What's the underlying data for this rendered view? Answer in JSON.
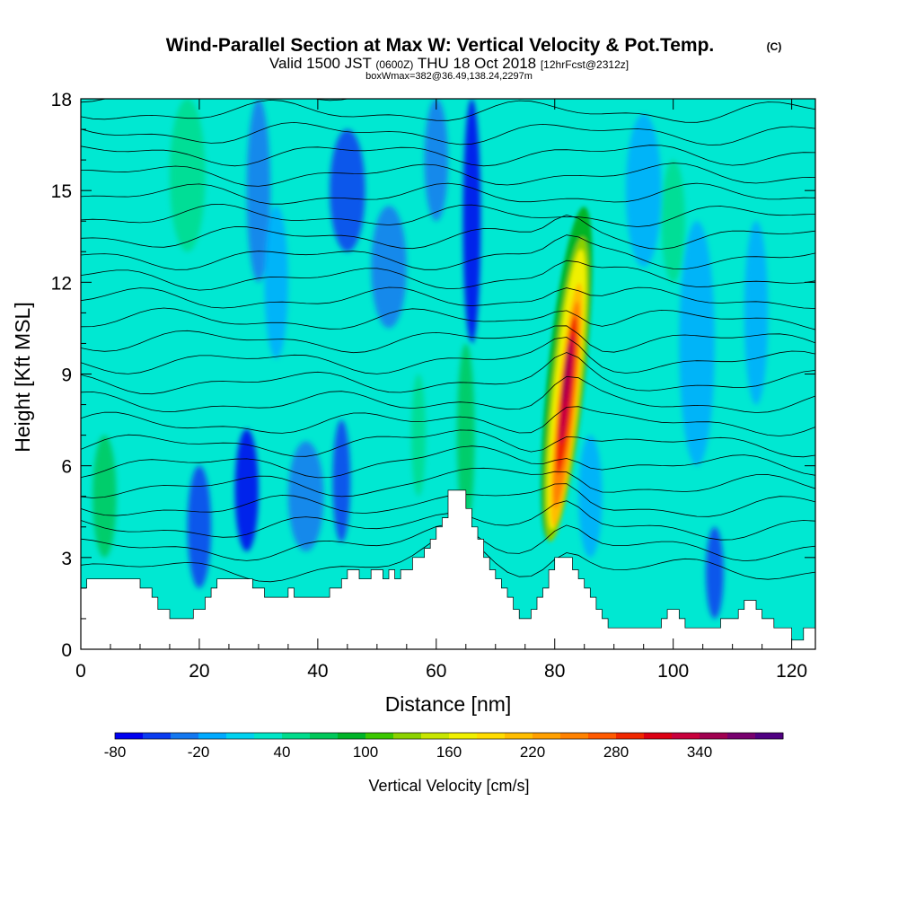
{
  "chart_data": {
    "type": "heatmap",
    "title": "Wind-Parallel Section at Max W: Vertical Velocity & Pot.Temp.",
    "title_tag": "(C)",
    "subtitle": {
      "valid": "Valid 1500 JST",
      "zulu": "(0600Z)",
      "date": "THU 18 Oct 2018",
      "forecast": "[12hrFcst@2312z]"
    },
    "annotation": "boxWmax=382@36.49,138.24,2297m",
    "xlabel": "Distance [nm]",
    "ylabel": "Height [Kft MSL]",
    "xlim": [
      0,
      124
    ],
    "ylim": [
      0,
      18
    ],
    "x_ticks": [
      0,
      20,
      40,
      60,
      80,
      100,
      120
    ],
    "y_ticks": [
      0,
      3,
      6,
      9,
      12,
      15,
      18
    ],
    "colorbar": {
      "label": "Vertical Velocity [cm/s]",
      "tick_labels": [
        -80,
        -20,
        40,
        100,
        160,
        220,
        280,
        340
      ],
      "levels": [
        -80,
        -60,
        -40,
        -20,
        0,
        20,
        40,
        60,
        80,
        100,
        120,
        140,
        160,
        180,
        200,
        220,
        240,
        260,
        280,
        300,
        320,
        340,
        360,
        380
      ],
      "colors": [
        "#0000f0",
        "#0a3cf0",
        "#1478f0",
        "#00aaff",
        "#00d2f0",
        "#00e6c8",
        "#00dc8c",
        "#00c85a",
        "#00b428",
        "#3cc800",
        "#8cd200",
        "#c8e600",
        "#f0f000",
        "#ffdc00",
        "#ffbe00",
        "#ffa000",
        "#ff8200",
        "#ff5a00",
        "#f02800",
        "#dc0014",
        "#c8003c",
        "#a00050",
        "#78006e",
        "#500082"
      ]
    },
    "terrain": [
      [
        0,
        2.0
      ],
      [
        1,
        2.0
      ],
      [
        1,
        2.3
      ],
      [
        10,
        2.3
      ],
      [
        10,
        2.0
      ],
      [
        12,
        2.0
      ],
      [
        12,
        1.7
      ],
      [
        13,
        1.7
      ],
      [
        13,
        1.3
      ],
      [
        15,
        1.3
      ],
      [
        15,
        1.0
      ],
      [
        19,
        1.0
      ],
      [
        19,
        1.3
      ],
      [
        21,
        1.3
      ],
      [
        21,
        1.7
      ],
      [
        22,
        1.7
      ],
      [
        22,
        2.0
      ],
      [
        23,
        2.0
      ],
      [
        23,
        2.3
      ],
      [
        29,
        2.3
      ],
      [
        29,
        2.0
      ],
      [
        31,
        2.0
      ],
      [
        31,
        1.7
      ],
      [
        35,
        1.7
      ],
      [
        35,
        2.0
      ],
      [
        36,
        2.0
      ],
      [
        36,
        1.7
      ],
      [
        42,
        1.7
      ],
      [
        42,
        2.0
      ],
      [
        44,
        2.0
      ],
      [
        44,
        2.3
      ],
      [
        45,
        2.3
      ],
      [
        45,
        2.6
      ],
      [
        47,
        2.6
      ],
      [
        47,
        2.3
      ],
      [
        49,
        2.3
      ],
      [
        49,
        2.6
      ],
      [
        51,
        2.6
      ],
      [
        51,
        2.3
      ],
      [
        52,
        2.3
      ],
      [
        52,
        2.6
      ],
      [
        53,
        2.6
      ],
      [
        53,
        2.3
      ],
      [
        54,
        2.3
      ],
      [
        54,
        2.6
      ],
      [
        56,
        2.6
      ],
      [
        56,
        3.0
      ],
      [
        58,
        3.0
      ],
      [
        58,
        3.3
      ],
      [
        59,
        3.3
      ],
      [
        59,
        3.6
      ],
      [
        60,
        3.6
      ],
      [
        60,
        4.0
      ],
      [
        61,
        4.0
      ],
      [
        61,
        4.3
      ],
      [
        62,
        4.3
      ],
      [
        62,
        5.2
      ],
      [
        65,
        5.2
      ],
      [
        65,
        4.6
      ],
      [
        66,
        4.6
      ],
      [
        66,
        4.0
      ],
      [
        67,
        4.0
      ],
      [
        67,
        3.6
      ],
      [
        68,
        3.6
      ],
      [
        68,
        3.0
      ],
      [
        69,
        3.0
      ],
      [
        69,
        2.6
      ],
      [
        70,
        2.6
      ],
      [
        70,
        2.3
      ],
      [
        71,
        2.3
      ],
      [
        71,
        2.0
      ],
      [
        72,
        2.0
      ],
      [
        72,
        1.7
      ],
      [
        73,
        1.7
      ],
      [
        73,
        1.3
      ],
      [
        74,
        1.3
      ],
      [
        74,
        1.0
      ],
      [
        76,
        1.0
      ],
      [
        76,
        1.3
      ],
      [
        77,
        1.3
      ],
      [
        77,
        1.7
      ],
      [
        78,
        1.7
      ],
      [
        78,
        2.0
      ],
      [
        79,
        2.0
      ],
      [
        79,
        2.6
      ],
      [
        80,
        2.6
      ],
      [
        80,
        3.0
      ],
      [
        83,
        3.0
      ],
      [
        83,
        2.6
      ],
      [
        84,
        2.6
      ],
      [
        84,
        2.3
      ],
      [
        85,
        2.3
      ],
      [
        85,
        2.0
      ],
      [
        86,
        2.0
      ],
      [
        86,
        1.7
      ],
      [
        87,
        1.7
      ],
      [
        87,
        1.3
      ],
      [
        88,
        1.3
      ],
      [
        88,
        1.0
      ],
      [
        89,
        1.0
      ],
      [
        89,
        0.7
      ],
      [
        98,
        0.7
      ],
      [
        98,
        1.0
      ],
      [
        99,
        1.0
      ],
      [
        99,
        1.3
      ],
      [
        101,
        1.3
      ],
      [
        101,
        1.0
      ],
      [
        102,
        1.0
      ],
      [
        102,
        0.7
      ],
      [
        108,
        0.7
      ],
      [
        108,
        1.0
      ],
      [
        111,
        1.0
      ],
      [
        111,
        1.3
      ],
      [
        112,
        1.3
      ],
      [
        112,
        1.6
      ],
      [
        114,
        1.6
      ],
      [
        114,
        1.3
      ],
      [
        115,
        1.3
      ],
      [
        115,
        1.0
      ],
      [
        117,
        1.0
      ],
      [
        117,
        0.7
      ],
      [
        120,
        0.7
      ],
      [
        120,
        0.3
      ],
      [
        122,
        0.3
      ],
      [
        122,
        0.7
      ],
      [
        124,
        0.7
      ]
    ],
    "updraft_core": {
      "x": [
        80,
        84
      ],
      "y_peak": 10,
      "max_w": 382
    }
  }
}
